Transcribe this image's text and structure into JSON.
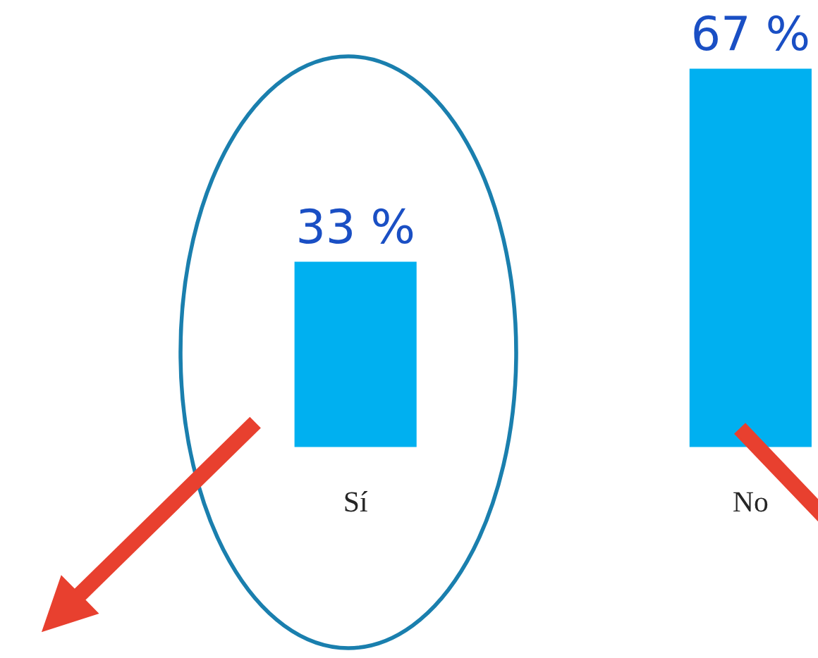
{
  "chart_data": {
    "type": "bar",
    "categories": [
      "Sí",
      "No"
    ],
    "values": [
      33,
      67
    ],
    "color": "#00b0f0",
    "value_labels": [
      "33 %",
      "67 %"
    ]
  }
}
